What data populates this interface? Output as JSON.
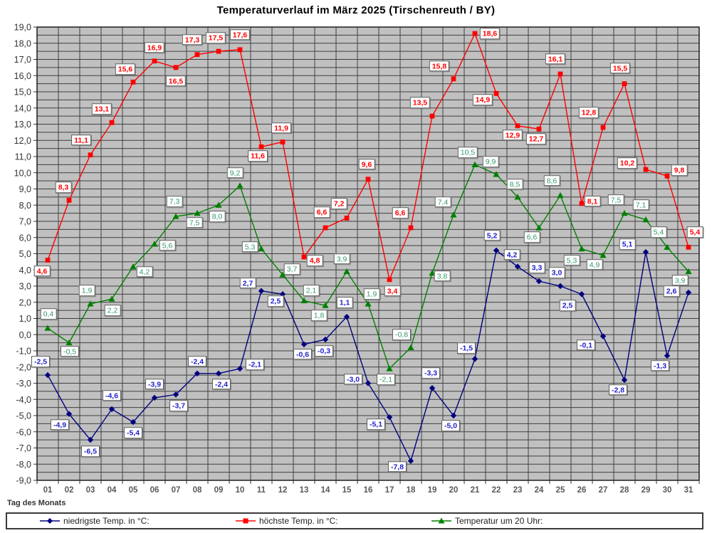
{
  "chart_data": {
    "type": "line",
    "title": "Temperaturverlauf im März 2025 (Tirschenreuth / BY)",
    "xlabel": "Tag des Monats",
    "ylabel": "",
    "categories": [
      "01",
      "02",
      "03",
      "04",
      "05",
      "06",
      "07",
      "08",
      "09",
      "10",
      "11",
      "12",
      "13",
      "14",
      "15",
      "16",
      "17",
      "18",
      "19",
      "20",
      "21",
      "22",
      "23",
      "24",
      "25",
      "26",
      "27",
      "28",
      "29",
      "30",
      "31"
    ],
    "ylim": [
      -9,
      19
    ],
    "ytick_step": 1,
    "ygrid_step": 0.5,
    "decimal_separator": ",",
    "grid": true,
    "plot_bg": "#c0c0c0",
    "grid_color": "#3f3f3f",
    "legend_position": "bottom",
    "series": [
      {
        "name": "niedrigste Temp. in °C:",
        "color": "#000080",
        "label_color": "#2222cc",
        "label_bold": true,
        "marker": "diamond",
        "values": [
          -2.5,
          -4.9,
          -6.5,
          -4.6,
          -5.4,
          -3.9,
          -3.7,
          -2.4,
          -2.4,
          -2.1,
          2.7,
          2.5,
          -0.6,
          -0.3,
          1.1,
          -3.0,
          -5.1,
          -7.8,
          -3.3,
          -5.0,
          -1.5,
          5.2,
          4.2,
          3.3,
          3.0,
          2.5,
          -0.1,
          -2.8,
          5.1,
          -1.3,
          2.6
        ],
        "label_offsets": [
          [
            -10,
            -19
          ],
          [
            -13,
            15
          ],
          [
            0,
            16
          ],
          [
            0,
            -19
          ],
          [
            0,
            15
          ],
          [
            0,
            -19
          ],
          [
            4,
            16
          ],
          [
            0,
            -17
          ],
          [
            4,
            15
          ],
          [
            21,
            -6
          ],
          [
            -19,
            -11
          ],
          [
            -10,
            10
          ],
          [
            -2,
            14
          ],
          [
            -2,
            16
          ],
          [
            -3,
            -20
          ],
          [
            -21,
            -6
          ],
          [
            -19,
            10
          ],
          [
            -19,
            8
          ],
          [
            -2,
            -21
          ],
          [
            -4,
            14
          ],
          [
            -12,
            -15
          ],
          [
            -6,
            -21
          ],
          [
            -8,
            -17
          ],
          [
            -3,
            -19
          ],
          [
            -5,
            -19
          ],
          [
            -20,
            16
          ],
          [
            -24,
            12
          ],
          [
            -9,
            14
          ],
          [
            -26,
            -11
          ],
          [
            -10,
            14
          ],
          [
            -24,
            -2
          ]
        ]
      },
      {
        "name": "höchste Temp. in °C:",
        "color": "#ff0000",
        "label_color": "#ff0000",
        "label_bold": true,
        "marker": "square",
        "values": [
          4.6,
          8.3,
          11.1,
          13.1,
          15.6,
          16.9,
          16.5,
          17.3,
          17.5,
          17.6,
          11.6,
          11.9,
          4.8,
          6.6,
          7.2,
          9.6,
          3.4,
          6.6,
          13.5,
          15.8,
          18.6,
          14.9,
          12.9,
          12.7,
          16.1,
          8.1,
          12.8,
          15.5,
          10.2,
          9.8,
          5.4
        ],
        "label_offsets": [
          [
            -8,
            15
          ],
          [
            -8,
            -18
          ],
          [
            -13,
            -21
          ],
          [
            -14,
            -19
          ],
          [
            -11,
            -18
          ],
          [
            0,
            -19
          ],
          [
            0,
            19
          ],
          [
            -7,
            -21
          ],
          [
            -4,
            -19
          ],
          [
            0,
            -21
          ],
          [
            -5,
            13
          ],
          [
            -2,
            -20
          ],
          [
            15,
            5
          ],
          [
            -5,
            -22
          ],
          [
            -11,
            -20
          ],
          [
            -2,
            -21
          ],
          [
            4,
            16
          ],
          [
            -15,
            -21
          ],
          [
            -17,
            -19
          ],
          [
            -20,
            -18
          ],
          [
            21,
            0
          ],
          [
            -19,
            9
          ],
          [
            -7,
            13
          ],
          [
            -4,
            14
          ],
          [
            -7,
            -21
          ],
          [
            15,
            -3
          ],
          [
            -20,
            -21
          ],
          [
            -6,
            -22
          ],
          [
            -26,
            -9
          ],
          [
            17,
            -8
          ],
          [
            9,
            -21
          ]
        ]
      },
      {
        "name": "Temperatur um 20 Uhr:",
        "color": "#008000",
        "label_color": "#339966",
        "label_bold": false,
        "marker": "triangle",
        "values": [
          0.4,
          -0.5,
          1.9,
          2.2,
          4.2,
          5.6,
          7.3,
          7.5,
          8.0,
          9.2,
          5.3,
          3.7,
          2.1,
          1.8,
          3.9,
          1.9,
          -2.1,
          -0.8,
          3.8,
          7.4,
          10.5,
          9.9,
          8.5,
          6.6,
          8.6,
          5.3,
          4.9,
          7.5,
          7.1,
          5.4,
          3.9
        ],
        "label_offsets": [
          [
            1,
            -20
          ],
          [
            1,
            12
          ],
          [
            -5,
            -19
          ],
          [
            1,
            16
          ],
          [
            16,
            7
          ],
          [
            18,
            2
          ],
          [
            -2,
            -21
          ],
          [
            -4,
            13
          ],
          [
            -2,
            16
          ],
          [
            -7,
            -18
          ],
          [
            -16,
            -3
          ],
          [
            13,
            -8
          ],
          [
            10,
            -14
          ],
          [
            -9,
            14
          ],
          [
            -7,
            -18
          ],
          [
            5,
            -14
          ],
          [
            -5,
            15
          ],
          [
            -13,
            -18
          ],
          [
            14,
            4
          ],
          [
            -15,
            -18
          ],
          [
            -10,
            -17
          ],
          [
            -8,
            -18
          ],
          [
            -4,
            -18
          ],
          [
            -10,
            13
          ],
          [
            -12,
            -21
          ],
          [
            -14,
            16
          ],
          [
            -12,
            13
          ],
          [
            -12,
            -19
          ],
          [
            -7,
            -21
          ],
          [
            -12,
            -21
          ],
          [
            -12,
            12
          ]
        ]
      }
    ]
  }
}
